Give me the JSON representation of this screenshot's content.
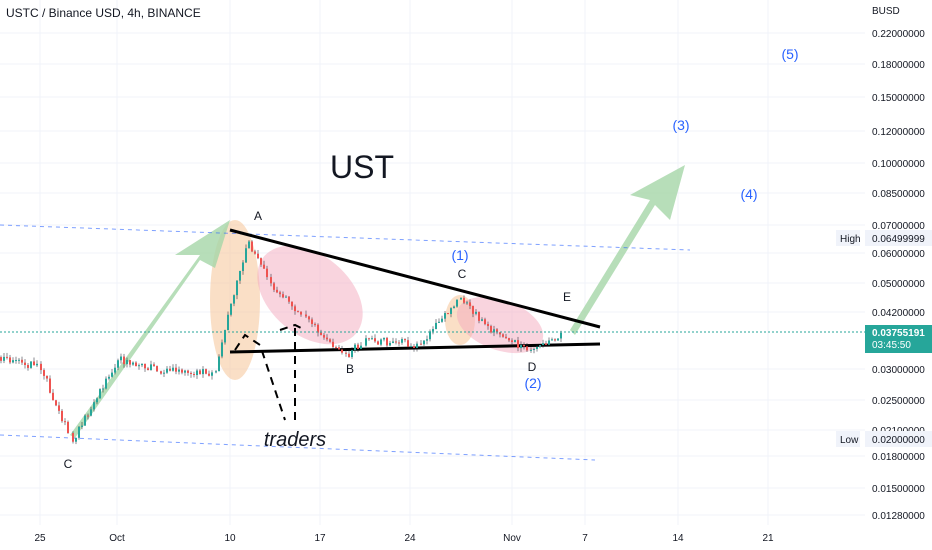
{
  "header": {
    "symbol_title": "USTC / Binance USD, 4h, BINANCE",
    "currency": "BUSD"
  },
  "colors": {
    "up": "#26a69a",
    "down": "#ef5350",
    "wick": "#131722",
    "last_price_bg": "#26a69a",
    "annotation_blue": "#2962ff",
    "arrow_green": "#a5d6a7",
    "highlight_orange": "#f6c9a0",
    "highlight_pink": "#f4a9bd"
  },
  "chart_data": {
    "type": "candlestick",
    "title": "",
    "x_axis": {
      "ticks": [
        "25",
        "Oct",
        "10",
        "17",
        "24",
        "Nov",
        "7",
        "14",
        "21"
      ]
    },
    "y_axis": {
      "scale": "log",
      "range": [
        0.0115,
        0.25
      ],
      "ticks": [
        "0.22000000",
        "0.18000000",
        "0.15000000",
        "0.12000000",
        "0.10000000",
        "0.08500000",
        "0.07000000",
        "0.06000000",
        "0.05000000",
        "0.04200000",
        "0.03000000",
        "0.02500000",
        "0.02100000",
        "0.01800000",
        "0.01500000",
        "0.01280000"
      ]
    },
    "markers": {
      "high": {
        "label": "High",
        "value": "0.06499999"
      },
      "low": {
        "label": "Low",
        "value": "0.02000000"
      },
      "last": {
        "value": "0.03755191",
        "countdown": "03:45:50"
      }
    },
    "annotations": {
      "big_text": "UST",
      "wave_labels": [
        "A",
        "B",
        "C",
        "D",
        "E",
        "C"
      ],
      "wave_counts": [
        "(1)",
        "(2)",
        "(3)",
        "(4)",
        "(5)"
      ],
      "traders": "traders"
    },
    "price_path_approx": [
      {
        "t": "Sep 22",
        "p": 0.0325
      },
      {
        "t": "Sep 25",
        "p": 0.0305
      },
      {
        "t": "Sep 27",
        "p": 0.02
      },
      {
        "t": "Oct 1",
        "p": 0.032
      },
      {
        "t": "Oct 5",
        "p": 0.03
      },
      {
        "t": "Oct 9",
        "p": 0.0295
      },
      {
        "t": "Oct 10",
        "p": 0.045
      },
      {
        "t": "Oct 11",
        "p": 0.064
      },
      {
        "t": "Oct 13",
        "p": 0.05
      },
      {
        "t": "Oct 16",
        "p": 0.041
      },
      {
        "t": "Oct 19",
        "p": 0.0325
      },
      {
        "t": "Oct 21",
        "p": 0.036
      },
      {
        "t": "Oct 25",
        "p": 0.035
      },
      {
        "t": "Oct 28",
        "p": 0.046
      },
      {
        "t": "Oct 31",
        "p": 0.038
      },
      {
        "t": "Nov 3",
        "p": 0.0335
      },
      {
        "t": "Nov 5",
        "p": 0.0376
      }
    ]
  }
}
